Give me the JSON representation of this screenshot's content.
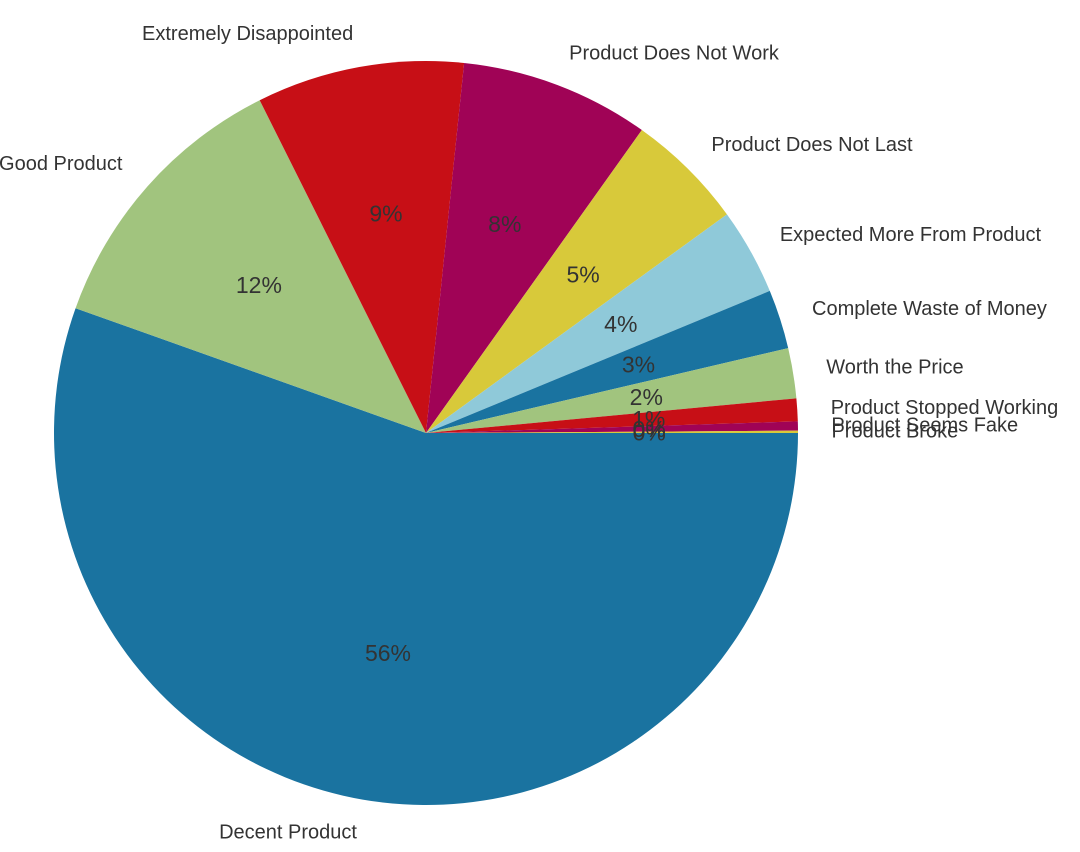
{
  "chart_data": {
    "type": "pie",
    "title": "",
    "categories": [
      "Decent Product",
      "Good Product",
      "Extremely Disappointed",
      "Product Does Not Work",
      "Product Does Not Last",
      "Expected More From Product",
      "Complete Waste of Money",
      "Worth the Price",
      "Product Stopped Working",
      "Product Seems Fake",
      "Product Broke"
    ],
    "values": [
      56.0,
      12.3,
      9.1,
      8.3,
      5.2,
      3.8,
      2.6,
      2.2,
      1.0,
      0.4,
      0.1
    ],
    "value_labels": [
      "56%",
      "12%",
      "9%",
      "8%",
      "5%",
      "4%",
      "3%",
      "2%",
      "1%",
      "0%",
      "0%"
    ],
    "colors": [
      "#1a73a0",
      "#a1c47e",
      "#c70f16",
      "#a00356",
      "#d8c93a",
      "#8fc9d9",
      "#1a73a0",
      "#a1c47e",
      "#c70f16",
      "#a00356",
      "#d8c93a"
    ],
    "legend": "none",
    "start_angle_deg": 0,
    "direction": "clockwise"
  }
}
